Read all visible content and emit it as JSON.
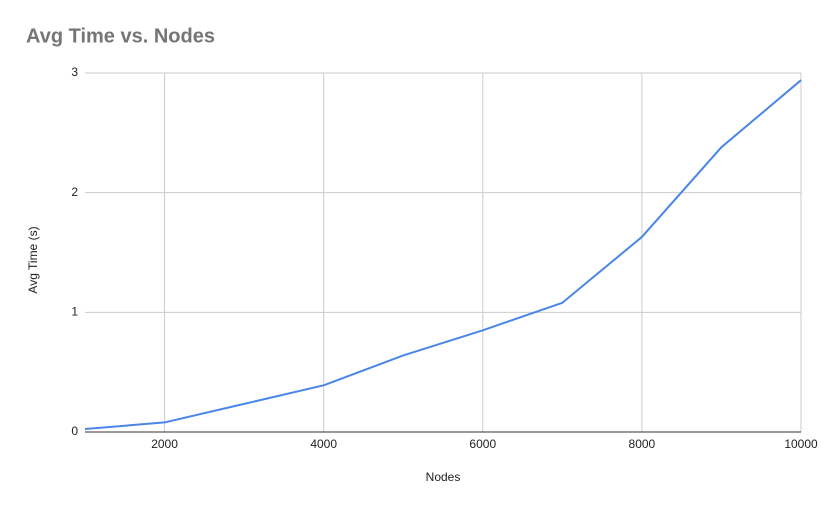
{
  "chart_data": {
    "type": "line",
    "title": "Avg Time vs. Nodes",
    "x_label": "Nodes",
    "y_label": "Avg Time (s)",
    "x": [
      1000,
      2000,
      3000,
      4000,
      5000,
      6000,
      7000,
      8000,
      9000,
      10000
    ],
    "series": [
      {
        "name": "Avg Time (s)",
        "color": "#4a86e8",
        "values": [
          0.025,
          0.08,
          0.235,
          0.39,
          0.64,
          0.85,
          1.08,
          1.63,
          2.38,
          2.94
        ]
      }
    ],
    "xlim": [
      1000,
      10000
    ],
    "xticks": [
      2000,
      4000,
      6000,
      8000,
      10000
    ],
    "ylim": [
      0,
      3
    ],
    "yticks": [
      0,
      1,
      2,
      3
    ],
    "grid": true
  }
}
